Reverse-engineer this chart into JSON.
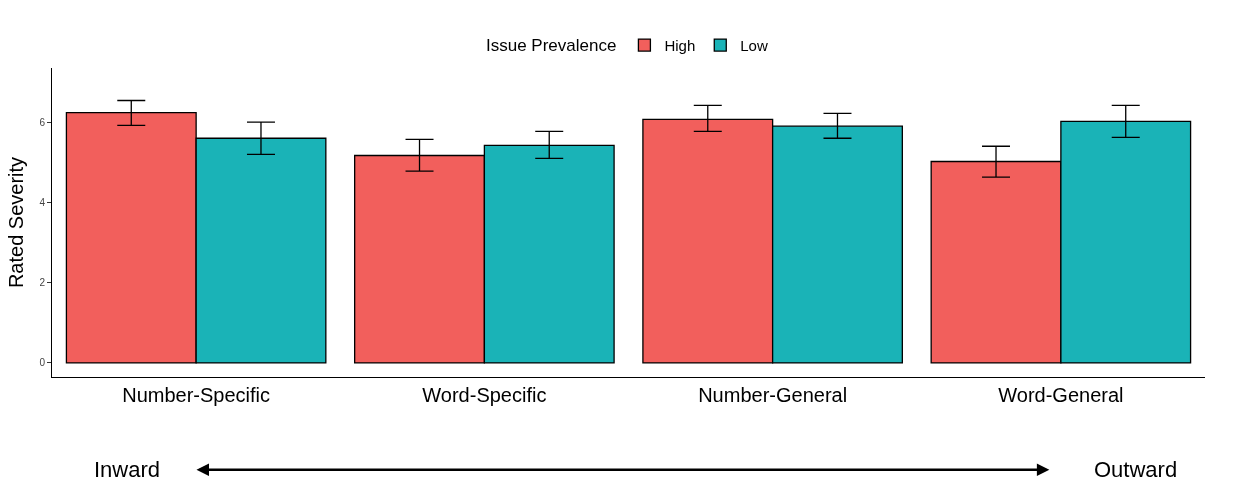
{
  "chart_data": {
    "type": "bar",
    "ylabel": "Rated Severity",
    "legend_title": "Issue Prevalence",
    "categories": [
      "Number-Specific",
      "Word-Specific",
      "Number-General",
      "Word-General"
    ],
    "series": [
      {
        "name": "High",
        "color": "#f25f5c",
        "values": [
          6.24,
          5.17,
          6.07,
          5.02
        ],
        "errors": [
          [
            5.92,
            6.54
          ],
          [
            4.78,
            5.57
          ],
          [
            5.77,
            6.42
          ],
          [
            4.63,
            5.4
          ]
        ]
      },
      {
        "name": "Low",
        "color": "#1ab3b7",
        "values": [
          5.6,
          5.42,
          5.9,
          6.02
        ],
        "errors": [
          [
            5.2,
            6.0
          ],
          [
            5.1,
            5.77
          ],
          [
            5.6,
            6.22
          ],
          [
            5.62,
            6.42
          ]
        ]
      }
    ],
    "ylim": [
      -0.35,
      7.35
    ],
    "yticks": [
      0,
      2,
      4,
      6
    ],
    "legend": "top",
    "annotations": [
      "Inward",
      "Outward"
    ]
  }
}
